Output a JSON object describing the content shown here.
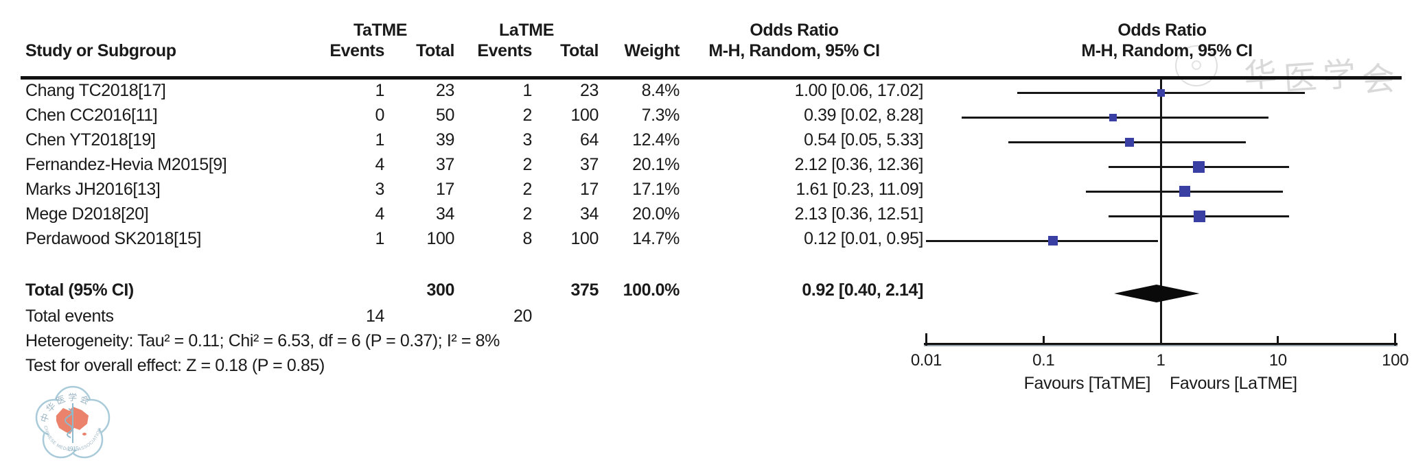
{
  "meta": {
    "background": "#ffffff",
    "text_color": "#1a1a1a",
    "marker_color": "#3a3fa3",
    "line_color": "#151515",
    "axis_shadow_color": "#96a3ad",
    "watermark_color": "#d9d9d9"
  },
  "table": {
    "header": {
      "study_col": "Study or Subgroup",
      "group1": "TaTME",
      "group2": "LaTME",
      "events": "Events",
      "total": "Total",
      "weight": "Weight",
      "or_title": "Odds Ratio",
      "or_subtitle": "M-H, Random, 95% CI",
      "plot_title": "Odds Ratio",
      "plot_subtitle": "M-H, Random, 95% CI"
    },
    "rows": [
      {
        "study": "Chang TC2018[17]",
        "events1": "1",
        "total1": "23",
        "events2": "1",
        "total2": "23",
        "weight": "8.4%",
        "or_text": "1.00 [0.06, 17.02]"
      },
      {
        "study": "Chen CC2016[11]",
        "events1": "0",
        "total1": "50",
        "events2": "2",
        "total2": "100",
        "weight": "7.3%",
        "or_text": "0.39 [0.02, 8.28]"
      },
      {
        "study": "Chen YT2018[19]",
        "events1": "1",
        "total1": "39",
        "events2": "3",
        "total2": "64",
        "weight": "12.4%",
        "or_text": "0.54 [0.05, 5.33]"
      },
      {
        "study": "Fernandez-Hevia M2015[9]",
        "events1": "4",
        "total1": "37",
        "events2": "2",
        "total2": "37",
        "weight": "20.1%",
        "or_text": "2.12 [0.36, 12.36]"
      },
      {
        "study": "Marks JH2016[13]",
        "events1": "3",
        "total1": "17",
        "events2": "2",
        "total2": "17",
        "weight": "17.1%",
        "or_text": "1.61 [0.23, 11.09]"
      },
      {
        "study": "Mege D2018[20]",
        "events1": "4",
        "total1": "34",
        "events2": "2",
        "total2": "34",
        "weight": "20.0%",
        "or_text": "2.13 [0.36, 12.51]"
      },
      {
        "study": "Perdawood SK2018[15]",
        "events1": "1",
        "total1": "100",
        "events2": "8",
        "total2": "100",
        "weight": "14.7%",
        "or_text": "0.12 [0.01, 0.95]"
      }
    ],
    "total_row": {
      "label": "Total (95% CI)",
      "total1": "300",
      "total2": "375",
      "weight": "100.0%",
      "or_text": "0.92 [0.40, 2.14]"
    },
    "total_events": {
      "label": "Total events",
      "events1": "14",
      "events2": "20"
    },
    "heterogeneity": "Heterogeneity: Tau² = 0.11; Chi² = 6.53, df = 6 (P = 0.37); I² = 8%",
    "overall_effect": "Test for overall effect: Z = 0.18 (P = 0.85)"
  },
  "chart_data": {
    "type": "scatter",
    "subtype": "forest-plot",
    "x_scale": "log10",
    "xlim": [
      0.01,
      100
    ],
    "x_ticks": [
      0.01,
      0.1,
      1,
      10,
      100
    ],
    "x_tick_labels": [
      "0.01",
      "0.1",
      "1",
      "10",
      "100"
    ],
    "null_line_value": 1,
    "effect_measure": "Odds Ratio, M-H, Random, 95% CI",
    "studies": [
      {
        "name": "Chang TC2018[17]",
        "or": 1.0,
        "ci_low": 0.06,
        "ci_high": 17.02,
        "weight_pct": 8.4
      },
      {
        "name": "Chen CC2016[11]",
        "or": 0.39,
        "ci_low": 0.02,
        "ci_high": 8.28,
        "weight_pct": 7.3
      },
      {
        "name": "Chen YT2018[19]",
        "or": 0.54,
        "ci_low": 0.05,
        "ci_high": 5.33,
        "weight_pct": 12.4
      },
      {
        "name": "Fernandez-Hevia M2015[9]",
        "or": 2.12,
        "ci_low": 0.36,
        "ci_high": 12.36,
        "weight_pct": 20.1
      },
      {
        "name": "Marks JH2016[13]",
        "or": 1.61,
        "ci_low": 0.23,
        "ci_high": 11.09,
        "weight_pct": 17.1
      },
      {
        "name": "Mege D2018[20]",
        "or": 2.13,
        "ci_low": 0.36,
        "ci_high": 12.51,
        "weight_pct": 20.0
      },
      {
        "name": "Perdawood SK2018[15]",
        "or": 0.12,
        "ci_low": 0.01,
        "ci_high": 0.95,
        "weight_pct": 14.7
      }
    ],
    "summary": {
      "or": 0.92,
      "ci_low": 0.4,
      "ci_high": 2.14
    },
    "favours_left": "Favours [TaTME]",
    "favours_right": "Favours [LaTME]"
  },
  "watermark": {
    "chars": [
      "华",
      "医",
      "学",
      "会"
    ]
  },
  "logo": {
    "top_text": "中华医学会",
    "bottom_text": "CHINESE MEDICAL ASSOCIATION",
    "year": "1915"
  }
}
